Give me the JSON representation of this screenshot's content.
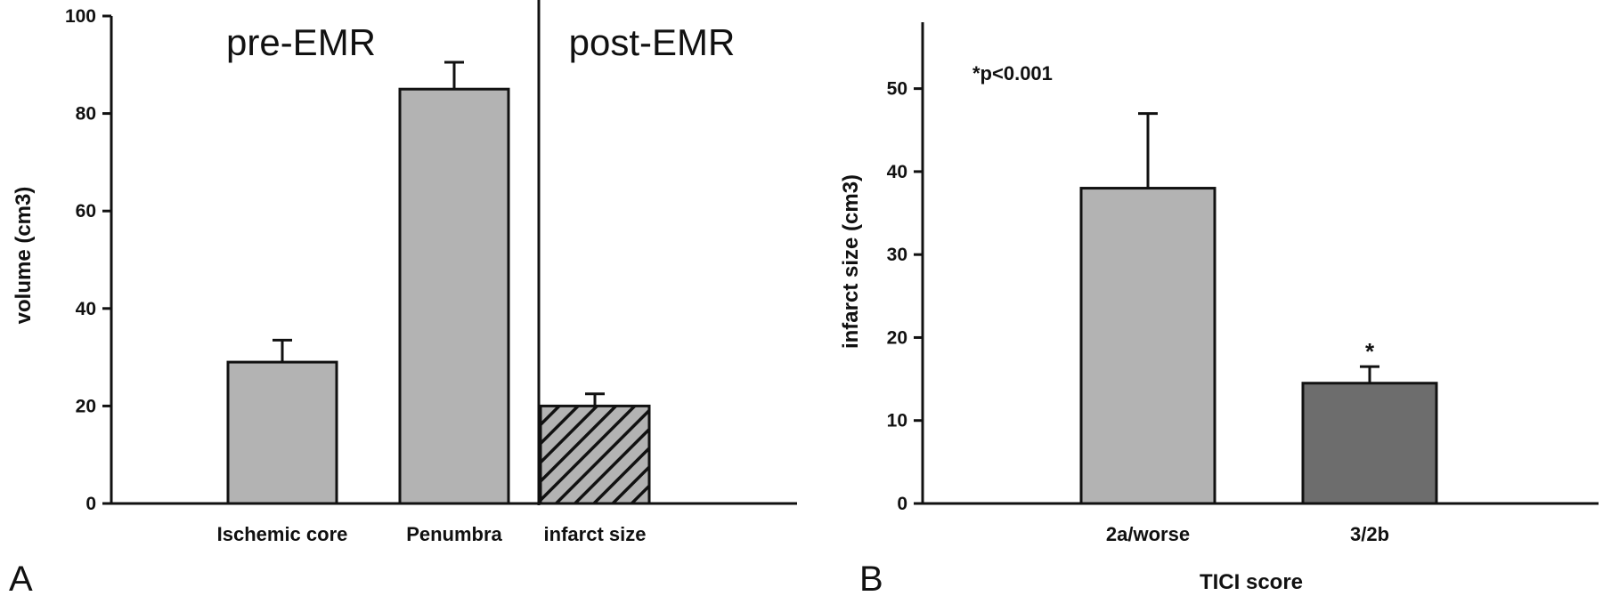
{
  "chart_data": [
    {
      "type": "bar",
      "panel_label": "A",
      "ylabel": "volume (cm3)",
      "xlabel": "",
      "ylim": [
        0,
        100
      ],
      "yticks": [
        0,
        20,
        40,
        60,
        80,
        100
      ],
      "categories": [
        "Ischemic core",
        "Penumbra",
        "infarct size"
      ],
      "values": [
        29,
        85,
        20
      ],
      "errors": [
        4.5,
        5.5,
        2.5
      ],
      "fills": [
        "#b3b3b3",
        "#b3b3b3",
        "hatch"
      ],
      "section_labels": [
        "pre-EMR",
        "post-EMR"
      ],
      "divider_after_category": 1,
      "grid": false
    },
    {
      "type": "bar",
      "panel_label": "B",
      "ylabel": "infarct size (cm3)",
      "xlabel": "TICI score",
      "ylim": [
        0,
        58
      ],
      "yticks": [
        0,
        10,
        20,
        30,
        40,
        50
      ],
      "categories": [
        "2a/worse",
        "3/2b"
      ],
      "values": [
        38,
        14.5
      ],
      "errors": [
        9,
        2
      ],
      "fills": [
        "#b3b3b3",
        "#6d6d6d"
      ],
      "annotation": "*p<0.001",
      "significance_marks": [
        "",
        "*"
      ],
      "grid": false
    }
  ]
}
